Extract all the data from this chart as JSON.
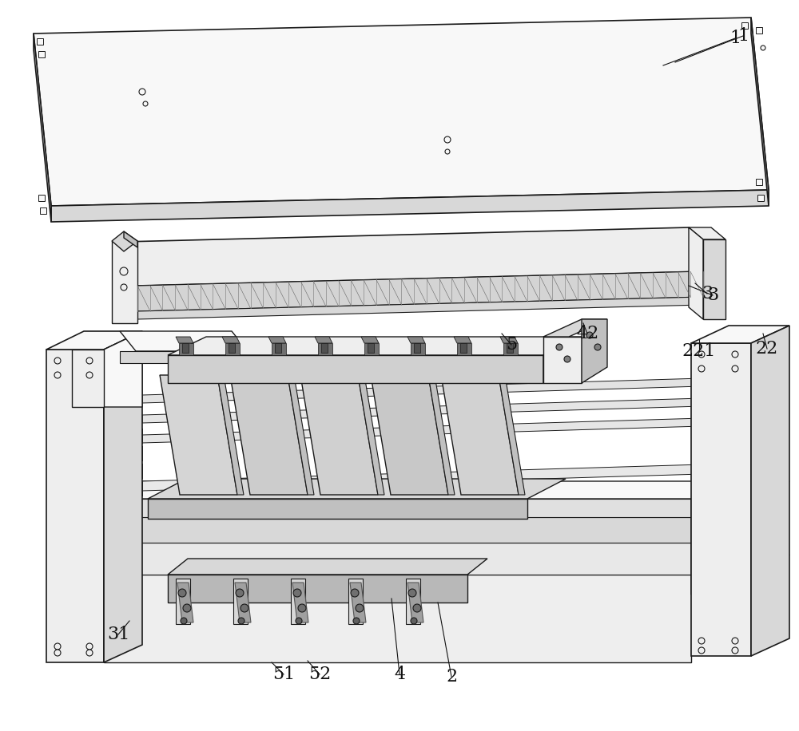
{
  "bg_color": "#ffffff",
  "lc": "#1a1a1a",
  "face_white": "#f8f8f8",
  "face_light": "#eeeeee",
  "face_mid": "#d8d8d8",
  "face_dark": "#c0c0c0",
  "face_darker": "#a8a8a8",
  "face_steel": "#e4e4e4",
  "label_fs": 16
}
